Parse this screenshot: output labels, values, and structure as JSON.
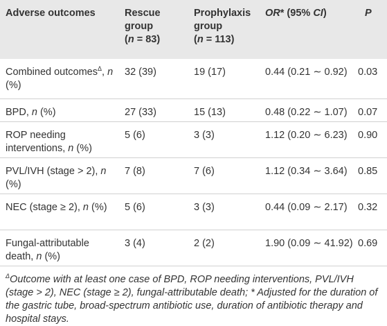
{
  "table": {
    "header": {
      "outcome": "Adverse outcomes",
      "rescue": [
        "Rescue group",
        "(",
        "n",
        " = 83)"
      ],
      "prophylaxis": [
        "Prophylaxis group",
        "(",
        "n",
        " = 113)"
      ],
      "or": [
        "OR",
        "* (95% ",
        "CI",
        ")"
      ],
      "p": "P"
    },
    "rows": [
      {
        "label": [
          "Combined outcomes",
          "Δ",
          ", ",
          "n",
          " (%)"
        ],
        "cells": [
          "32 (39)",
          "19 (17)",
          "0.44 (0.21 ∼ 0.92)",
          "0.03"
        ]
      },
      {
        "label": [
          "BPD, ",
          "n",
          " (%)"
        ],
        "cells": [
          "27 (33)",
          "15 (13)",
          "0.48 (0.22 ∼ 1.07)",
          "0.07"
        ]
      },
      {
        "label": [
          "ROP needing interventions, ",
          "n",
          " (%)"
        ],
        "cells": [
          "5 (6)",
          "3 (3)",
          "1.12 (0.20 ∼ 6.23)",
          "0.90"
        ]
      },
      {
        "label": [
          "PVL/IVH (stage > 2), ",
          "n",
          " (%)"
        ],
        "cells": [
          "7 (8)",
          "7 (6)",
          "1.12 (0.34 ∼ 3.64)",
          "0.85"
        ]
      },
      {
        "label": [
          "NEC (stage ≥ 2), ",
          "n",
          " (%)"
        ],
        "cells": [
          "5 (6)",
          "3 (3)",
          "0.44 (0.09 ∼ 2.17)",
          "0.32"
        ]
      },
      {
        "label": [
          "Fungal-attributable death, ",
          "n",
          " (%)"
        ],
        "cells": [
          "3 (4)",
          "2 (2)",
          "1.90 (0.09 ∼ 41.92)",
          "0.69"
        ]
      }
    ],
    "footnote": [
      "Δ",
      "Outcome with at least one case of BPD, ROP needing interventions, PVL/IVH (stage > 2), NEC (stage ≥ 2), fungal-attributable death; * Adjusted for the duration of the gastric tube, broad-spectrum antibiotic use, duration of antibiotic therapy and hospital stays."
    ]
  }
}
